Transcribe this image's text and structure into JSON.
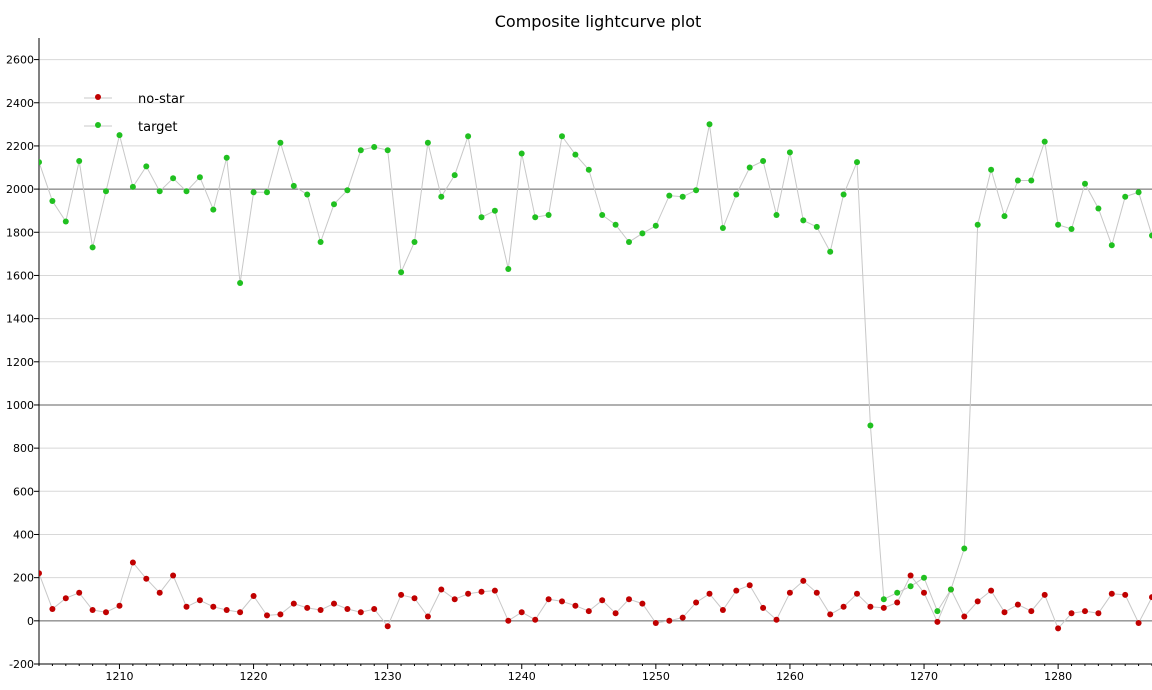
{
  "chart_data": {
    "type": "scatter",
    "title": "Composite lightcurve plot",
    "xlabel": "",
    "ylabel": "",
    "xlim": [
      1204,
      1287
    ],
    "ylim": [
      -200,
      2700
    ],
    "x_ticks": [
      1210,
      1220,
      1230,
      1240,
      1250,
      1260,
      1270,
      1280
    ],
    "y_ticks": [
      -200,
      0,
      200,
      400,
      600,
      800,
      1000,
      1200,
      1400,
      1600,
      1800,
      2000,
      2200,
      2400,
      2600
    ],
    "major_y_lines": [
      0,
      1000,
      2000
    ],
    "grid": true,
    "legend_placement": "top-left",
    "connect_points": true,
    "x": [
      1204,
      1205,
      1206,
      1207,
      1208,
      1209,
      1210,
      1211,
      1212,
      1213,
      1214,
      1215,
      1216,
      1217,
      1218,
      1219,
      1220,
      1221,
      1222,
      1223,
      1224,
      1225,
      1226,
      1227,
      1228,
      1229,
      1230,
      1231,
      1232,
      1233,
      1234,
      1235,
      1236,
      1237,
      1238,
      1239,
      1240,
      1241,
      1242,
      1243,
      1244,
      1245,
      1246,
      1247,
      1248,
      1249,
      1250,
      1251,
      1252,
      1253,
      1254,
      1255,
      1256,
      1257,
      1258,
      1259,
      1260,
      1261,
      1262,
      1263,
      1264,
      1265,
      1266,
      1267,
      1268,
      1269,
      1270,
      1271,
      1272,
      1273,
      1274,
      1275,
      1276,
      1277,
      1278,
      1279,
      1280,
      1281,
      1282,
      1283,
      1284,
      1285,
      1286,
      1287
    ],
    "series": [
      {
        "name": "no-star",
        "color": "#c00000",
        "values": [
          220,
          55,
          105,
          130,
          50,
          40,
          70,
          270,
          195,
          130,
          210,
          65,
          95,
          65,
          50,
          40,
          115,
          25,
          30,
          80,
          60,
          50,
          80,
          55,
          40,
          55,
          -25,
          120,
          105,
          20,
          145,
          100,
          125,
          135,
          140,
          0,
          40,
          5,
          100,
          90,
          70,
          45,
          95,
          35,
          100,
          80,
          -10,
          0,
          15,
          85,
          125,
          50,
          140,
          165,
          60,
          5,
          130,
          185,
          130,
          30,
          65,
          125,
          65,
          60,
          85,
          210,
          130,
          -5,
          145,
          20,
          90,
          140,
          40,
          75,
          45,
          120,
          -35,
          35,
          45,
          35,
          125,
          120,
          -10,
          110
        ]
      },
      {
        "name": "target",
        "color": "#20c020",
        "values": [
          2125,
          1945,
          1850,
          2130,
          1730,
          1990,
          2250,
          2010,
          2105,
          1990,
          2050,
          1990,
          2055,
          1905,
          2145,
          1565,
          1985,
          1985,
          2215,
          2015,
          1975,
          1755,
          1930,
          1995,
          2180,
          2195,
          2180,
          1615,
          1755,
          2215,
          1965,
          2065,
          2245,
          1870,
          1900,
          1630,
          2165,
          1870,
          1880,
          2245,
          2160,
          2090,
          1880,
          1835,
          1755,
          1795,
          1830,
          1970,
          1965,
          1995,
          2300,
          1820,
          1975,
          2100,
          2130,
          1880,
          2170,
          1855,
          1825,
          1710,
          1975,
          2125,
          905,
          100,
          130,
          160,
          200,
          45,
          145,
          335,
          1835,
          2090,
          1875,
          2040,
          2040,
          2220,
          1835,
          1815,
          2025,
          1910,
          1740,
          1965,
          1985,
          1785
        ]
      }
    ]
  }
}
